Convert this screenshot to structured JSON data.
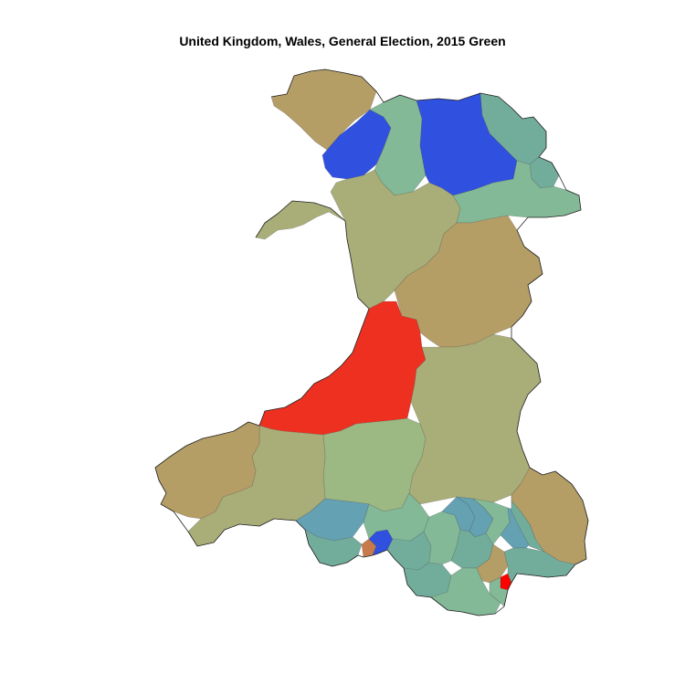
{
  "title": "United Kingdom, Wales, General Election, 2015 Green",
  "palette": {
    "background": "#ffffff",
    "coastline": "#222222",
    "blue": "#3050e0",
    "red": "#ee3020",
    "bright_red": "#ff0000",
    "orange": "#c87a4a",
    "dark_tan": "#b59e66",
    "olive": "#a9ae79",
    "sage": "#9cb883",
    "sea_green": "#83b997",
    "teal": "#72ad9c",
    "blue_teal": "#63a1b3"
  }
}
